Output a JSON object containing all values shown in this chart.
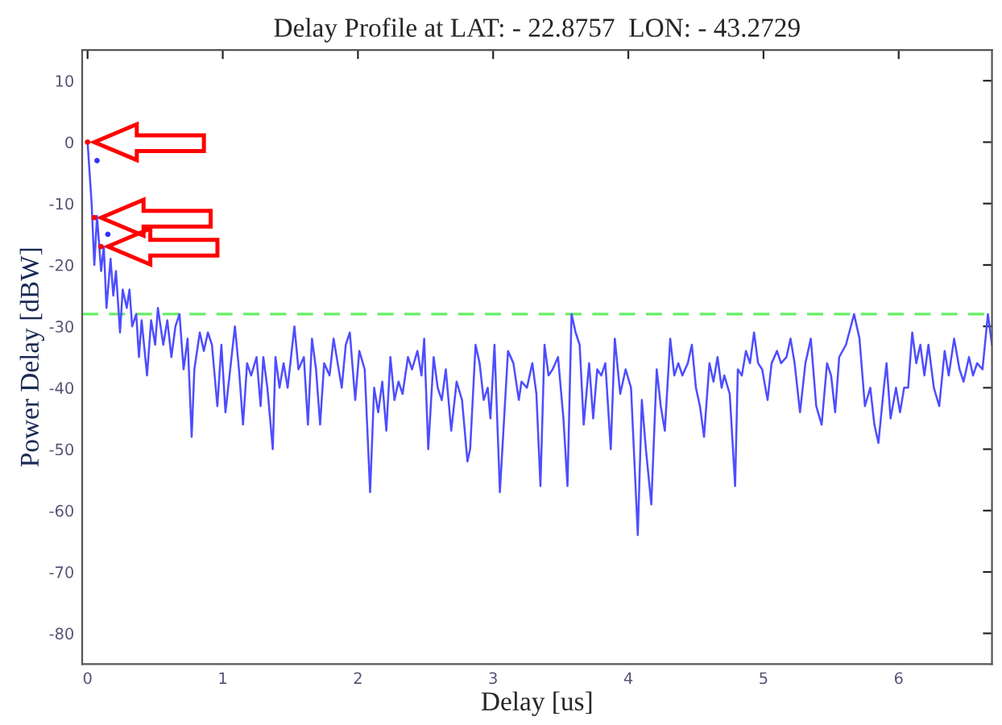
{
  "chart_data": {
    "type": "line",
    "title": "Delay Profile at LAT: - 22.8757  LON: - 43.2729",
    "xlabel": "Delay [us]",
    "ylabel": "Power Delay [dBW]",
    "xlim": [
      -0.04,
      6.69
    ],
    "xticks": [
      0,
      1,
      2,
      3,
      4,
      5,
      6
    ],
    "ylim": [
      -85,
      15
    ],
    "yticks": [
      10,
      0,
      -10,
      -20,
      -30,
      -40,
      -50,
      -60,
      -70,
      -80
    ],
    "grid": false,
    "legend": false,
    "ref_lines": [
      {
        "axis": "y",
        "value": -28,
        "color": "#66ee66",
        "line_style": "dashed"
      }
    ],
    "series": [
      {
        "color": "#4d4dff",
        "marker": "none",
        "x": [
          0.0,
          0.03,
          0.05,
          0.07,
          0.1,
          0.12,
          0.14,
          0.17,
          0.19,
          0.21,
          0.24,
          0.26,
          0.29,
          0.31,
          0.33,
          0.36,
          0.38,
          0.4,
          0.44,
          0.47,
          0.5,
          0.52,
          0.56,
          0.59,
          0.62,
          0.65,
          0.68,
          0.71,
          0.74,
          0.77,
          0.79,
          0.83,
          0.86,
          0.89,
          0.92,
          0.96,
          0.99,
          1.02,
          1.06,
          1.09,
          1.12,
          1.15,
          1.18,
          1.21,
          1.25,
          1.28,
          1.3,
          1.33,
          1.37,
          1.39,
          1.42,
          1.45,
          1.48,
          1.53,
          1.56,
          1.6,
          1.63,
          1.66,
          1.69,
          1.72,
          1.75,
          1.79,
          1.82,
          1.85,
          1.88,
          1.91,
          1.94,
          1.98,
          2.01,
          2.05,
          2.09,
          2.12,
          2.15,
          2.18,
          2.21,
          2.24,
          2.27,
          2.3,
          2.33,
          2.37,
          2.4,
          2.44,
          2.47,
          2.49,
          2.52,
          2.56,
          2.59,
          2.62,
          2.65,
          2.69,
          2.73,
          2.77,
          2.81,
          2.83,
          2.87,
          2.9,
          2.93,
          2.96,
          2.98,
          3.01,
          3.05,
          3.11,
          3.15,
          3.19,
          3.21,
          3.25,
          3.29,
          3.32,
          3.35,
          3.38,
          3.41,
          3.44,
          3.48,
          3.52,
          3.55,
          3.58,
          3.61,
          3.64,
          3.67,
          3.71,
          3.74,
          3.77,
          3.8,
          3.83,
          3.87,
          3.9,
          3.94,
          3.98,
          4.02,
          4.07,
          4.1,
          4.13,
          4.17,
          4.21,
          4.24,
          4.27,
          4.31,
          4.34,
          4.37,
          4.4,
          4.44,
          4.47,
          4.5,
          4.53,
          4.56,
          4.6,
          4.63,
          4.66,
          4.69,
          4.71,
          4.75,
          4.79,
          4.81,
          4.84,
          4.87,
          4.9,
          4.93,
          4.96,
          4.99,
          5.03,
          5.06,
          5.1,
          5.13,
          5.17,
          5.2,
          5.23,
          5.27,
          5.31,
          5.35,
          5.39,
          5.43,
          5.47,
          5.5,
          5.53,
          5.56,
          5.61,
          5.67,
          5.71,
          5.75,
          5.79,
          5.82,
          5.85,
          5.89,
          5.91,
          5.94,
          5.98,
          6.01,
          6.04,
          6.07,
          6.1,
          6.13,
          6.16,
          6.19,
          6.22,
          6.26,
          6.3,
          6.34,
          6.37,
          6.41,
          6.45,
          6.48,
          6.52,
          6.55,
          6.58,
          6.62,
          6.66,
          6.69
        ],
        "values": [
          0,
          -10,
          -20,
          -12,
          -21,
          -17,
          -27,
          -19,
          -25,
          -21,
          -31,
          -24,
          -27,
          -24,
          -30,
          -28,
          -35,
          -29,
          -38,
          -29,
          -33,
          -27,
          -33,
          -29,
          -35,
          -30,
          -28,
          -37,
          -32,
          -48,
          -37,
          -31,
          -34,
          -31,
          -33,
          -43,
          -33,
          -44,
          -36,
          -30,
          -37,
          -46,
          -36,
          -38,
          -35,
          -43,
          -35,
          -40,
          -50,
          -35,
          -40,
          -36,
          -40,
          -30,
          -37,
          -35,
          -46,
          -32,
          -37,
          -46,
          -36,
          -38,
          -32,
          -36,
          -40,
          -33,
          -31,
          -42,
          -34,
          -37,
          -57,
          -40,
          -44,
          -39,
          -47,
          -35,
          -42,
          -39,
          -41,
          -35,
          -37,
          -34,
          -38,
          -32,
          -50,
          -35,
          -40,
          -42,
          -37,
          -47,
          -39,
          -42,
          -52,
          -50,
          -33,
          -36,
          -42,
          -40,
          -45,
          -33,
          -57,
          -34,
          -36,
          -42,
          -39,
          -40,
          -36,
          -41,
          -56,
          -33,
          -38,
          -37,
          -35,
          -45,
          -56,
          -28,
          -31,
          -33,
          -46,
          -36,
          -45,
          -37,
          -38,
          -36,
          -50,
          -32,
          -41,
          -37,
          -40,
          -64,
          -42,
          -50,
          -59,
          -37,
          -43,
          -47,
          -32,
          -38,
          -36,
          -38,
          -36,
          -33,
          -40,
          -43,
          -48,
          -36,
          -39,
          -35,
          -40,
          -38,
          -41,
          -56,
          -37,
          -38,
          -34,
          -36,
          -31,
          -36,
          -37,
          -42,
          -36,
          -34,
          -36,
          -35,
          -32,
          -36,
          -44,
          -36,
          -32,
          -43,
          -46,
          -36,
          -38,
          -44,
          -35,
          -33,
          -28,
          -32,
          -43,
          -40,
          -46,
          -49,
          -40,
          -36,
          -45,
          -40,
          -44,
          -40,
          -40,
          -31,
          -36,
          -33,
          -38,
          -33,
          -40,
          -43,
          -34,
          -38,
          -32,
          -37,
          -39,
          -35,
          -38,
          -36,
          -37,
          -28,
          -33
        ]
      },
      {
        "type": "scatter",
        "color": "#ff0000",
        "marker": "circle",
        "x": [
          0.0,
          0.05,
          0.1
        ],
        "values": [
          0,
          -12.3,
          -17
        ]
      },
      {
        "type": "scatter",
        "color": "#3333ff",
        "marker": "circle",
        "x": [
          0.07,
          0.15
        ],
        "values": [
          -3,
          -15
        ]
      }
    ]
  }
}
